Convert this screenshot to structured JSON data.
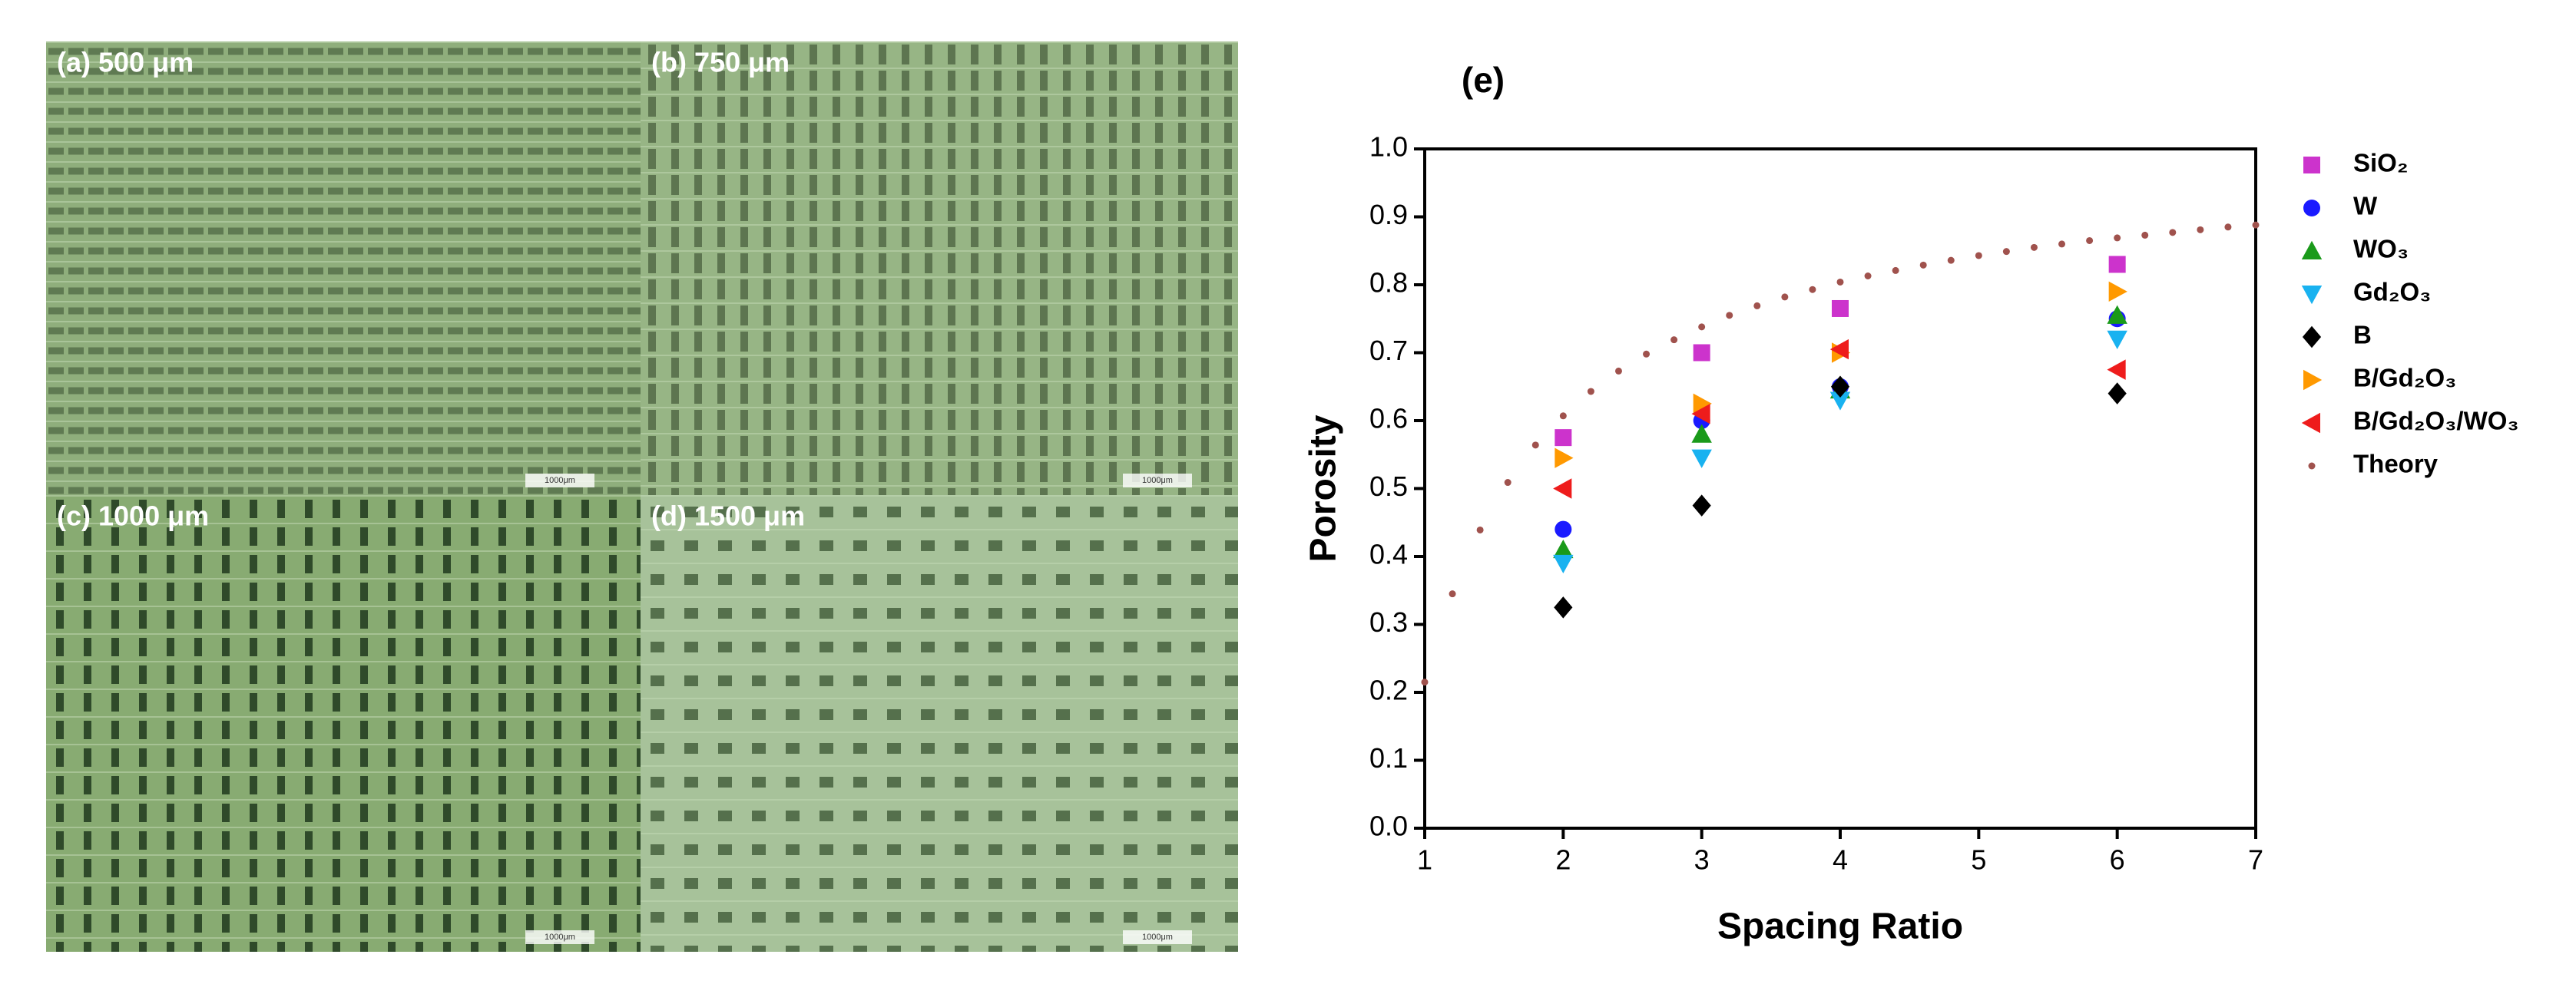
{
  "panels": [
    {
      "label": "(a)  500 μm",
      "scale_bar": "1000μm"
    },
    {
      "label": "(b)  750 μm",
      "scale_bar": "1000μm"
    },
    {
      "label": "(c)  1000 μm",
      "scale_bar": "1000μm"
    },
    {
      "label": "(d)  1500 μm",
      "scale_bar": "1000μm"
    }
  ],
  "chart_data": {
    "type": "scatter",
    "title": "(e)",
    "x_label": "Spacing Ratio",
    "y_label": "Porosity",
    "xlim": [
      1,
      7
    ],
    "ylim": [
      0,
      1
    ],
    "xticks": [
      1,
      2,
      3,
      4,
      5,
      6,
      7
    ],
    "yticks": [
      {
        "value": 0,
        "label": "0.0"
      },
      0.1,
      0.2,
      0.3,
      0.4,
      0.5,
      0.6,
      0.7,
      0.8,
      0.9,
      {
        "value": 1,
        "label": "1.0"
      }
    ],
    "legend": "right",
    "series": [
      {
        "name": "SiO₂",
        "color": "#cc33cc",
        "marker": "square",
        "x": [
          2,
          3,
          4,
          6
        ],
        "values": [
          0.575,
          0.7,
          0.765,
          0.83
        ]
      },
      {
        "name": "W",
        "color": "#1a1aff",
        "marker": "circle",
        "x": [
          2,
          3,
          4,
          6
        ],
        "values": [
          0.44,
          0.6,
          0.65,
          0.75
        ]
      },
      {
        "name": "WO₃",
        "color": "#1a9a1a",
        "marker": "triangle-up",
        "x": [
          2,
          3,
          4,
          6
        ],
        "values": [
          0.41,
          0.58,
          0.645,
          0.755
        ]
      },
      {
        "name": "Gd₂O₃",
        "color": "#19b2f0",
        "marker": "triangle-down",
        "x": [
          2,
          3,
          4,
          6
        ],
        "values": [
          0.39,
          0.545,
          0.63,
          0.72
        ]
      },
      {
        "name": "B",
        "color": "#000000",
        "marker": "diamond",
        "x": [
          2,
          3,
          4,
          6
        ],
        "values": [
          0.325,
          0.475,
          0.65,
          0.64
        ]
      },
      {
        "name": "B/Gd₂O₃",
        "color": "#ff9900",
        "marker": "triangle-right",
        "x": [
          2,
          3,
          4,
          6
        ],
        "values": [
          0.545,
          0.625,
          0.7,
          0.79
        ]
      },
      {
        "name": "B/Gd₂O₃/WO₃",
        "color": "#ee1c1c",
        "marker": "triangle-left",
        "x": [
          2,
          3,
          4,
          6
        ],
        "values": [
          0.5,
          0.61,
          0.705,
          0.675
        ]
      },
      {
        "name": "Theory",
        "color": "#a0524d",
        "marker": "dot",
        "x": [
          1.0,
          1.2,
          1.4,
          1.6,
          1.8,
          2.0,
          2.2,
          2.4,
          2.6,
          2.8,
          3.0,
          3.2,
          3.4,
          3.6,
          3.8,
          4.0,
          4.2,
          4.4,
          4.6,
          4.8,
          5.0,
          5.2,
          5.4,
          5.6,
          5.8,
          6.0,
          6.2,
          6.4,
          6.6,
          6.8,
          7.0
        ],
        "values": [
          0.215,
          0.345,
          0.439,
          0.509,
          0.564,
          0.607,
          0.643,
          0.673,
          0.698,
          0.719,
          0.738,
          0.755,
          0.769,
          0.782,
          0.793,
          0.804,
          0.813,
          0.821,
          0.829,
          0.836,
          0.843,
          0.849,
          0.855,
          0.86,
          0.865,
          0.869,
          0.873,
          0.877,
          0.881,
          0.885,
          0.888
        ]
      }
    ]
  }
}
